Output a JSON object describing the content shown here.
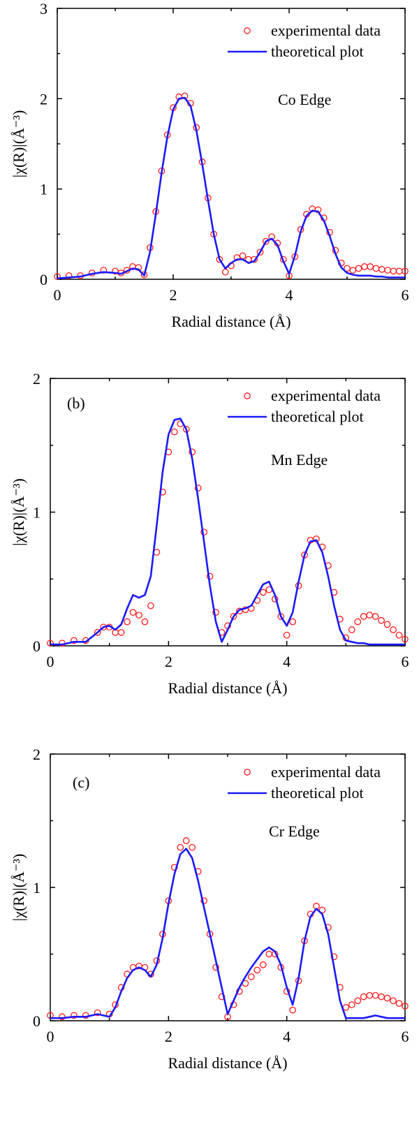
{
  "chart_data": [
    {
      "type": "line",
      "panel_label": "",
      "annotation": "Co Edge",
      "xlabel": "Radial distance (Å)",
      "ylabel": "|χ(R)|(Å⁻³)",
      "xlim": [
        0,
        6
      ],
      "ylim": [
        0,
        3
      ],
      "xticks": [
        "0",
        "2",
        "4",
        "6"
      ],
      "yticks": [
        "0",
        "1",
        "2",
        "3"
      ],
      "legend": {
        "position": "top-right",
        "entries": [
          "experimental data",
          "theoretical plot"
        ]
      },
      "series": [
        {
          "name": "experimental data",
          "style": "open-circle",
          "color": "#ff1a1a",
          "x": [
            0.0,
            0.2,
            0.4,
            0.6,
            0.8,
            1.0,
            1.1,
            1.2,
            1.3,
            1.4,
            1.5,
            1.6,
            1.7,
            1.8,
            1.9,
            2.0,
            2.1,
            2.2,
            2.3,
            2.4,
            2.5,
            2.6,
            2.7,
            2.8,
            2.9,
            3.0,
            3.1,
            3.2,
            3.3,
            3.4,
            3.5,
            3.6,
            3.7,
            3.8,
            3.9,
            4.0,
            4.1,
            4.2,
            4.3,
            4.4,
            4.5,
            4.6,
            4.7,
            4.8,
            4.9,
            5.0,
            5.1,
            5.2,
            5.3,
            5.4,
            5.5,
            5.6,
            5.7,
            5.8,
            5.9,
            6.0
          ],
          "y": [
            0.03,
            0.04,
            0.04,
            0.07,
            0.1,
            0.09,
            0.07,
            0.1,
            0.14,
            0.13,
            0.05,
            0.35,
            0.75,
            1.2,
            1.6,
            1.9,
            2.02,
            2.03,
            1.95,
            1.68,
            1.3,
            0.9,
            0.5,
            0.22,
            0.08,
            0.15,
            0.24,
            0.26,
            0.22,
            0.22,
            0.3,
            0.42,
            0.47,
            0.4,
            0.22,
            0.04,
            0.25,
            0.55,
            0.72,
            0.78,
            0.77,
            0.68,
            0.52,
            0.32,
            0.18,
            0.12,
            0.1,
            0.12,
            0.14,
            0.14,
            0.12,
            0.11,
            0.1,
            0.09,
            0.09,
            0.09
          ]
        },
        {
          "name": "theoretical plot",
          "style": "line",
          "color": "#1a1aff",
          "x": [
            0.0,
            0.2,
            0.4,
            0.6,
            0.8,
            1.0,
            1.1,
            1.2,
            1.3,
            1.4,
            1.5,
            1.6,
            1.7,
            1.8,
            1.9,
            2.0,
            2.1,
            2.2,
            2.3,
            2.4,
            2.5,
            2.6,
            2.7,
            2.8,
            2.9,
            3.0,
            3.1,
            3.2,
            3.3,
            3.4,
            3.5,
            3.6,
            3.7,
            3.8,
            3.9,
            4.0,
            4.1,
            4.2,
            4.3,
            4.4,
            4.5,
            4.6,
            4.7,
            4.8,
            4.9,
            5.0,
            5.1,
            5.2,
            5.3,
            5.4,
            5.5,
            5.6,
            5.7,
            5.8,
            5.9,
            6.0
          ],
          "y": [
            0.01,
            0.02,
            0.03,
            0.06,
            0.08,
            0.07,
            0.06,
            0.09,
            0.12,
            0.11,
            0.04,
            0.3,
            0.72,
            1.18,
            1.58,
            1.88,
            2.0,
            2.01,
            1.92,
            1.65,
            1.28,
            0.88,
            0.5,
            0.22,
            0.12,
            0.18,
            0.22,
            0.22,
            0.18,
            0.2,
            0.3,
            0.42,
            0.45,
            0.38,
            0.2,
            0.06,
            0.26,
            0.53,
            0.7,
            0.76,
            0.75,
            0.65,
            0.48,
            0.28,
            0.13,
            0.07,
            0.05,
            0.04,
            0.04,
            0.04,
            0.03,
            0.03,
            0.02,
            0.02,
            0.02,
            0.02
          ]
        }
      ]
    },
    {
      "type": "line",
      "panel_label": "(b)",
      "annotation": "Mn  Edge",
      "xlabel": "Radial distance (Å)",
      "ylabel": "|χ(R)|(Å⁻³)",
      "xlim": [
        0,
        6
      ],
      "ylim": [
        0,
        2
      ],
      "xticks": [
        "0",
        "2",
        "4",
        "6"
      ],
      "yticks": [
        "0",
        "1",
        "2"
      ],
      "legend": {
        "position": "top-right",
        "entries": [
          "experimental data",
          "theoretical plot"
        ]
      },
      "series": [
        {
          "name": "experimental data",
          "style": "open-circle",
          "color": "#ff1a1a",
          "x": [
            0.0,
            0.2,
            0.4,
            0.6,
            0.8,
            0.9,
            1.0,
            1.1,
            1.2,
            1.3,
            1.4,
            1.5,
            1.6,
            1.7,
            1.8,
            1.9,
            2.0,
            2.1,
            2.2,
            2.3,
            2.4,
            2.5,
            2.6,
            2.7,
            2.8,
            2.9,
            3.0,
            3.1,
            3.2,
            3.3,
            3.4,
            3.5,
            3.6,
            3.7,
            3.8,
            3.9,
            4.0,
            4.1,
            4.2,
            4.3,
            4.4,
            4.5,
            4.6,
            4.7,
            4.8,
            4.9,
            5.0,
            5.1,
            5.2,
            5.3,
            5.4,
            5.5,
            5.6,
            5.7,
            5.8,
            5.9,
            6.0
          ],
          "y": [
            0.02,
            0.02,
            0.04,
            0.04,
            0.1,
            0.14,
            0.14,
            0.1,
            0.1,
            0.18,
            0.25,
            0.23,
            0.18,
            0.3,
            0.7,
            1.15,
            1.45,
            1.6,
            1.66,
            1.62,
            1.45,
            1.18,
            0.85,
            0.52,
            0.25,
            0.1,
            0.15,
            0.22,
            0.26,
            0.27,
            0.28,
            0.34,
            0.4,
            0.42,
            0.35,
            0.22,
            0.08,
            0.18,
            0.45,
            0.68,
            0.79,
            0.8,
            0.74,
            0.6,
            0.4,
            0.2,
            0.06,
            0.12,
            0.18,
            0.22,
            0.23,
            0.22,
            0.19,
            0.16,
            0.12,
            0.08,
            0.05
          ]
        },
        {
          "name": "theoretical plot",
          "style": "line",
          "color": "#1a1aff",
          "x": [
            0.0,
            0.2,
            0.4,
            0.6,
            0.8,
            0.9,
            1.0,
            1.1,
            1.2,
            1.3,
            1.4,
            1.5,
            1.6,
            1.7,
            1.8,
            1.9,
            2.0,
            2.1,
            2.2,
            2.3,
            2.4,
            2.5,
            2.6,
            2.7,
            2.8,
            2.9,
            3.0,
            3.1,
            3.2,
            3.3,
            3.4,
            3.5,
            3.6,
            3.7,
            3.8,
            3.9,
            4.0,
            4.1,
            4.2,
            4.3,
            4.4,
            4.5,
            4.6,
            4.7,
            4.8,
            4.9,
            5.0,
            5.1,
            5.2,
            5.3,
            5.4,
            5.5,
            5.6,
            5.7,
            5.8,
            5.9,
            6.0
          ],
          "y": [
            0.01,
            0.01,
            0.03,
            0.03,
            0.1,
            0.14,
            0.15,
            0.12,
            0.16,
            0.28,
            0.38,
            0.36,
            0.38,
            0.52,
            0.9,
            1.3,
            1.58,
            1.69,
            1.7,
            1.62,
            1.4,
            1.1,
            0.78,
            0.45,
            0.18,
            0.03,
            0.12,
            0.22,
            0.27,
            0.28,
            0.3,
            0.38,
            0.46,
            0.48,
            0.38,
            0.22,
            0.15,
            0.25,
            0.48,
            0.68,
            0.78,
            0.79,
            0.7,
            0.52,
            0.3,
            0.12,
            0.04,
            0.03,
            0.02,
            0.02,
            0.01,
            0.01,
            0.01,
            0.01,
            0.01,
            0.01,
            0.01
          ]
        }
      ]
    },
    {
      "type": "line",
      "panel_label": "(c)",
      "annotation": "Cr Edge",
      "xlabel": "Radial distance (Å)",
      "ylabel": "|χ(R)|(Å⁻³)",
      "xlim": [
        0,
        6
      ],
      "ylim": [
        0,
        2
      ],
      "xticks": [
        "0",
        "2",
        "4",
        "6"
      ],
      "yticks": [
        "0",
        "1",
        "2"
      ],
      "legend": {
        "position": "top-right",
        "entries": [
          "experimental data",
          "theoretical plot"
        ]
      },
      "series": [
        {
          "name": "experimental data",
          "style": "open-circle",
          "color": "#ff1a1a",
          "x": [
            0.0,
            0.2,
            0.4,
            0.6,
            0.8,
            1.0,
            1.1,
            1.2,
            1.3,
            1.4,
            1.5,
            1.6,
            1.7,
            1.8,
            1.9,
            2.0,
            2.1,
            2.2,
            2.3,
            2.4,
            2.5,
            2.6,
            2.7,
            2.8,
            2.9,
            3.0,
            3.1,
            3.2,
            3.3,
            3.4,
            3.5,
            3.6,
            3.7,
            3.8,
            3.9,
            4.0,
            4.1,
            4.2,
            4.3,
            4.4,
            4.5,
            4.6,
            4.7,
            4.8,
            4.9,
            5.0,
            5.1,
            5.2,
            5.3,
            5.4,
            5.5,
            5.6,
            5.7,
            5.8,
            5.9,
            6.0
          ],
          "y": [
            0.04,
            0.03,
            0.04,
            0.04,
            0.06,
            0.05,
            0.12,
            0.25,
            0.35,
            0.4,
            0.41,
            0.4,
            0.35,
            0.45,
            0.65,
            0.9,
            1.15,
            1.3,
            1.35,
            1.3,
            1.12,
            0.9,
            0.65,
            0.4,
            0.18,
            0.03,
            0.12,
            0.22,
            0.28,
            0.33,
            0.38,
            0.42,
            0.5,
            0.5,
            0.4,
            0.22,
            0.08,
            0.3,
            0.6,
            0.8,
            0.86,
            0.83,
            0.7,
            0.48,
            0.25,
            0.1,
            0.12,
            0.15,
            0.18,
            0.19,
            0.19,
            0.18,
            0.17,
            0.15,
            0.13,
            0.11
          ]
        },
        {
          "name": "theoretical plot",
          "style": "line",
          "color": "#1a1aff",
          "x": [
            0.0,
            0.2,
            0.4,
            0.6,
            0.8,
            1.0,
            1.1,
            1.2,
            1.3,
            1.4,
            1.5,
            1.6,
            1.7,
            1.8,
            1.9,
            2.0,
            2.1,
            2.2,
            2.3,
            2.4,
            2.5,
            2.6,
            2.7,
            2.8,
            2.9,
            3.0,
            3.1,
            3.2,
            3.3,
            3.4,
            3.5,
            3.6,
            3.7,
            3.8,
            3.9,
            4.0,
            4.1,
            4.2,
            4.3,
            4.4,
            4.5,
            4.6,
            4.7,
            4.8,
            4.9,
            5.0,
            5.1,
            5.2,
            5.3,
            5.4,
            5.5,
            5.6,
            5.7,
            5.8,
            5.9,
            6.0
          ],
          "y": [
            0.02,
            0.02,
            0.03,
            0.03,
            0.05,
            0.03,
            0.1,
            0.22,
            0.32,
            0.38,
            0.4,
            0.38,
            0.33,
            0.42,
            0.62,
            0.88,
            1.1,
            1.25,
            1.29,
            1.22,
            1.05,
            0.85,
            0.65,
            0.45,
            0.25,
            0.05,
            0.15,
            0.25,
            0.33,
            0.4,
            0.46,
            0.52,
            0.55,
            0.52,
            0.42,
            0.25,
            0.12,
            0.32,
            0.6,
            0.78,
            0.84,
            0.8,
            0.65,
            0.4,
            0.15,
            0.02,
            0.02,
            0.02,
            0.02,
            0.03,
            0.04,
            0.03,
            0.02,
            0.02,
            0.02,
            0.02
          ]
        }
      ]
    }
  ]
}
